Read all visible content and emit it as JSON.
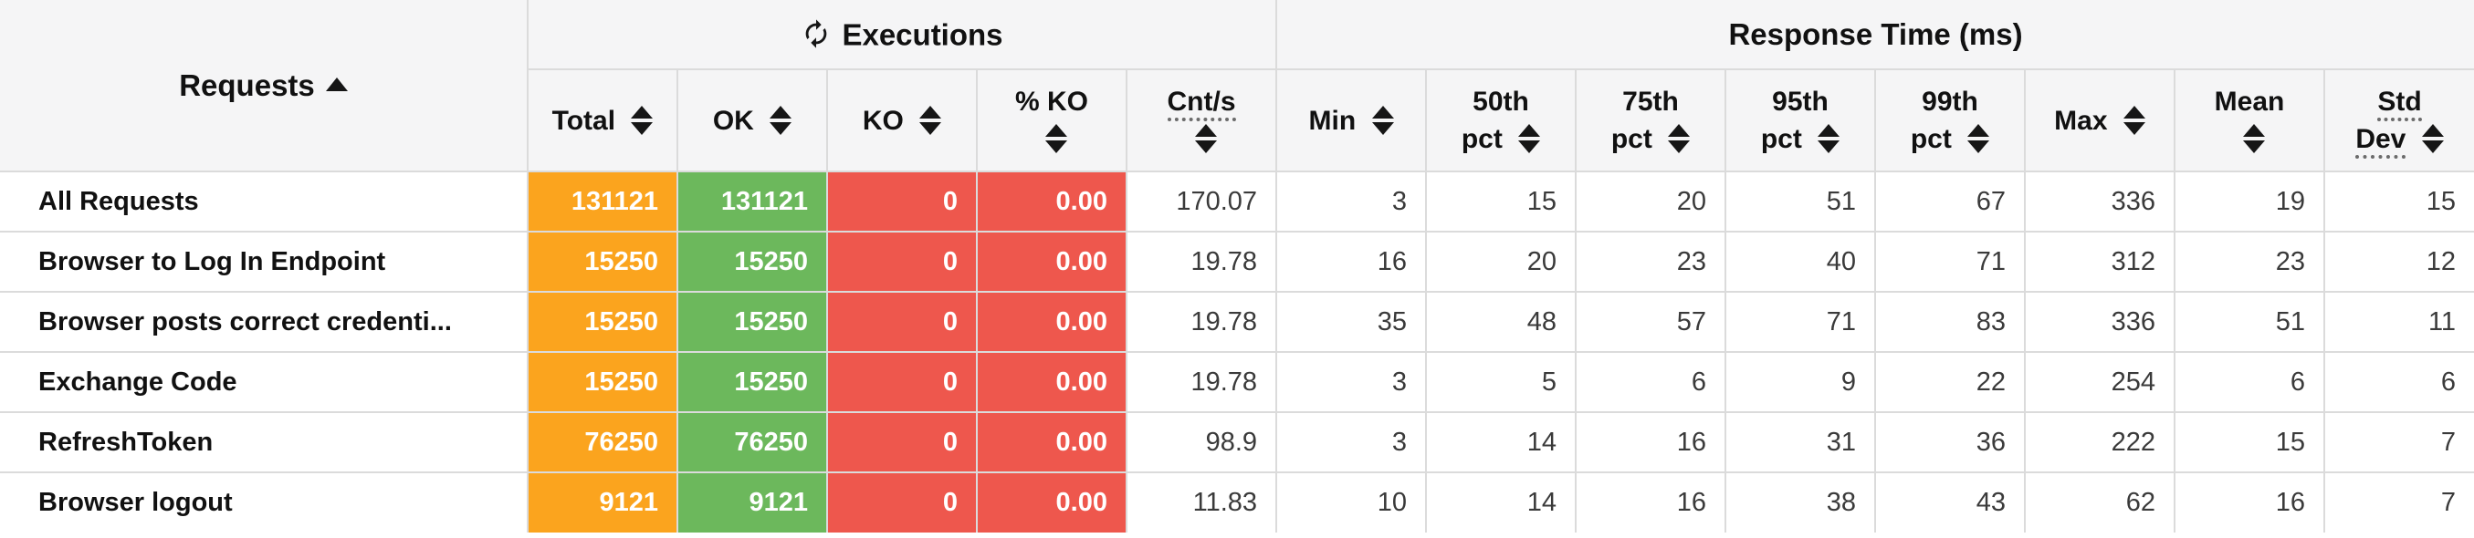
{
  "colors": {
    "total_badge": "#FBA41E",
    "ok_badge": "#6CB85C",
    "ko_badge": "#EE574D",
    "header_bg": "#F5F5F6",
    "border": "#DBDBDB",
    "header_text": "#111111",
    "value_text": "#3A3A3A"
  },
  "icons": {
    "refresh": "circular-autorenew-arrows",
    "sort_both": "up-down-triangles",
    "sort_asc": "up-triangle"
  },
  "table": {
    "requests_header": {
      "label": "Requests",
      "sort": "asc"
    },
    "groups": {
      "executions": "Executions",
      "response_time": "Response Time (ms)"
    },
    "columns": [
      {
        "key": "total",
        "label1": "Total",
        "icon_line": 1
      },
      {
        "key": "ok",
        "label1": "OK",
        "icon_line": 1
      },
      {
        "key": "ko",
        "label1": "KO",
        "icon_line": 1
      },
      {
        "key": "ko-pct",
        "label1": "% KO",
        "icon_line": 2
      },
      {
        "key": "cnt-s",
        "label1": "Cnt/s",
        "icon_line": 2,
        "u1": true
      },
      {
        "key": "min",
        "label1": "Min",
        "icon_line": 1
      },
      {
        "key": "50th-pct",
        "label1": "50th",
        "label2": "pct",
        "icon_line": 2
      },
      {
        "key": "75th-pct",
        "label1": "75th",
        "label2": "pct",
        "icon_line": 2
      },
      {
        "key": "95th-pct",
        "label1": "95th",
        "label2": "pct",
        "icon_line": 2
      },
      {
        "key": "99th-pct",
        "label1": "99th",
        "label2": "pct",
        "icon_line": 2
      },
      {
        "key": "max",
        "label1": "Max",
        "icon_line": 1
      },
      {
        "key": "mean",
        "label1": "Mean",
        "icon_line": 2
      },
      {
        "key": "std-dev",
        "label1": "Std",
        "label2": "Dev",
        "icon_line": 2,
        "u1": true,
        "u2": true
      }
    ],
    "rows": [
      {
        "name": "All Requests",
        "values": [
          "131121",
          "131121",
          "0",
          "0.00",
          "170.07",
          "3",
          "15",
          "20",
          "51",
          "67",
          "336",
          "19",
          "15"
        ]
      },
      {
        "name": "Browser to Log In Endpoint",
        "values": [
          "15250",
          "15250",
          "0",
          "0.00",
          "19.78",
          "16",
          "20",
          "23",
          "40",
          "71",
          "312",
          "23",
          "12"
        ]
      },
      {
        "name": "Browser posts correct credenti...",
        "values": [
          "15250",
          "15250",
          "0",
          "0.00",
          "19.78",
          "35",
          "48",
          "57",
          "71",
          "83",
          "336",
          "51",
          "11"
        ]
      },
      {
        "name": "Exchange Code",
        "values": [
          "15250",
          "15250",
          "0",
          "0.00",
          "19.78",
          "3",
          "5",
          "6",
          "9",
          "22",
          "254",
          "6",
          "6"
        ]
      },
      {
        "name": "RefreshToken",
        "values": [
          "76250",
          "76250",
          "0",
          "0.00",
          "98.9",
          "3",
          "14",
          "16",
          "31",
          "36",
          "222",
          "15",
          "7"
        ]
      },
      {
        "name": "Browser logout",
        "values": [
          "9121",
          "9121",
          "0",
          "0.00",
          "11.83",
          "10",
          "14",
          "16",
          "38",
          "43",
          "62",
          "16",
          "7"
        ]
      }
    ]
  }
}
